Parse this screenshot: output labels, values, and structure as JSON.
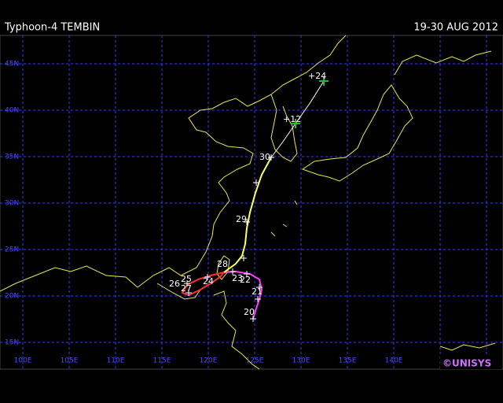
{
  "header": {
    "title": "Typhoon-4 TEMBIN",
    "dates": "19-30 AUG 2012"
  },
  "latitude_labels": [
    "45N",
    "40N",
    "35N",
    "30N",
    "25N",
    "20N",
    "15N"
  ],
  "longitude_labels": [
    "100E",
    "105E",
    "110E",
    "115E",
    "120E",
    "125E",
    "130E",
    "135E",
    "140E"
  ],
  "track_labels": [
    "20",
    "21",
    "22",
    "23",
    "24",
    "25",
    "26",
    "27",
    "28",
    "29",
    "30"
  ],
  "forecast_labels": [
    "+12",
    "+24"
  ],
  "credit": "©UNISYS"
}
